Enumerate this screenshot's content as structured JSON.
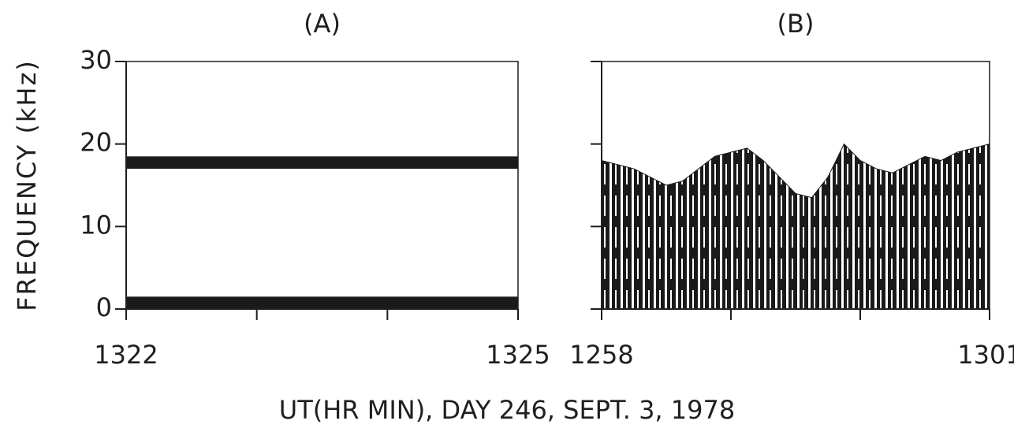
{
  "xlabel": "UT(HR MIN),    DAY 246,    SEPT. 3, 1978",
  "chart_data": [
    {
      "type": "band",
      "title": "(A)",
      "ylabel": "FREQUENCY (kHz)",
      "categories": [
        "1322",
        null,
        null,
        "1325"
      ],
      "ylim": [
        0,
        30
      ],
      "yticks": [
        0,
        10,
        20,
        30
      ],
      "ytick_labels": true,
      "bands": [
        [
          17,
          18.5
        ],
        [
          0,
          1.5
        ]
      ],
      "color": "#1a1a1a"
    },
    {
      "type": "area",
      "title": "(B)",
      "categories": [
        "1258",
        null,
        null,
        "1301"
      ],
      "ylim": [
        0,
        30
      ],
      "yticks": [
        0,
        10,
        20,
        30
      ],
      "ytick_labels": false,
      "envelope": [
        18,
        17.5,
        17,
        16,
        15,
        15.5,
        17,
        18.5,
        19,
        19.5,
        18,
        16,
        14,
        13.5,
        16,
        20,
        18,
        17,
        16.5,
        17.5,
        18.5,
        18,
        19,
        19.5,
        20
      ],
      "color": "#1a1a1a"
    }
  ]
}
